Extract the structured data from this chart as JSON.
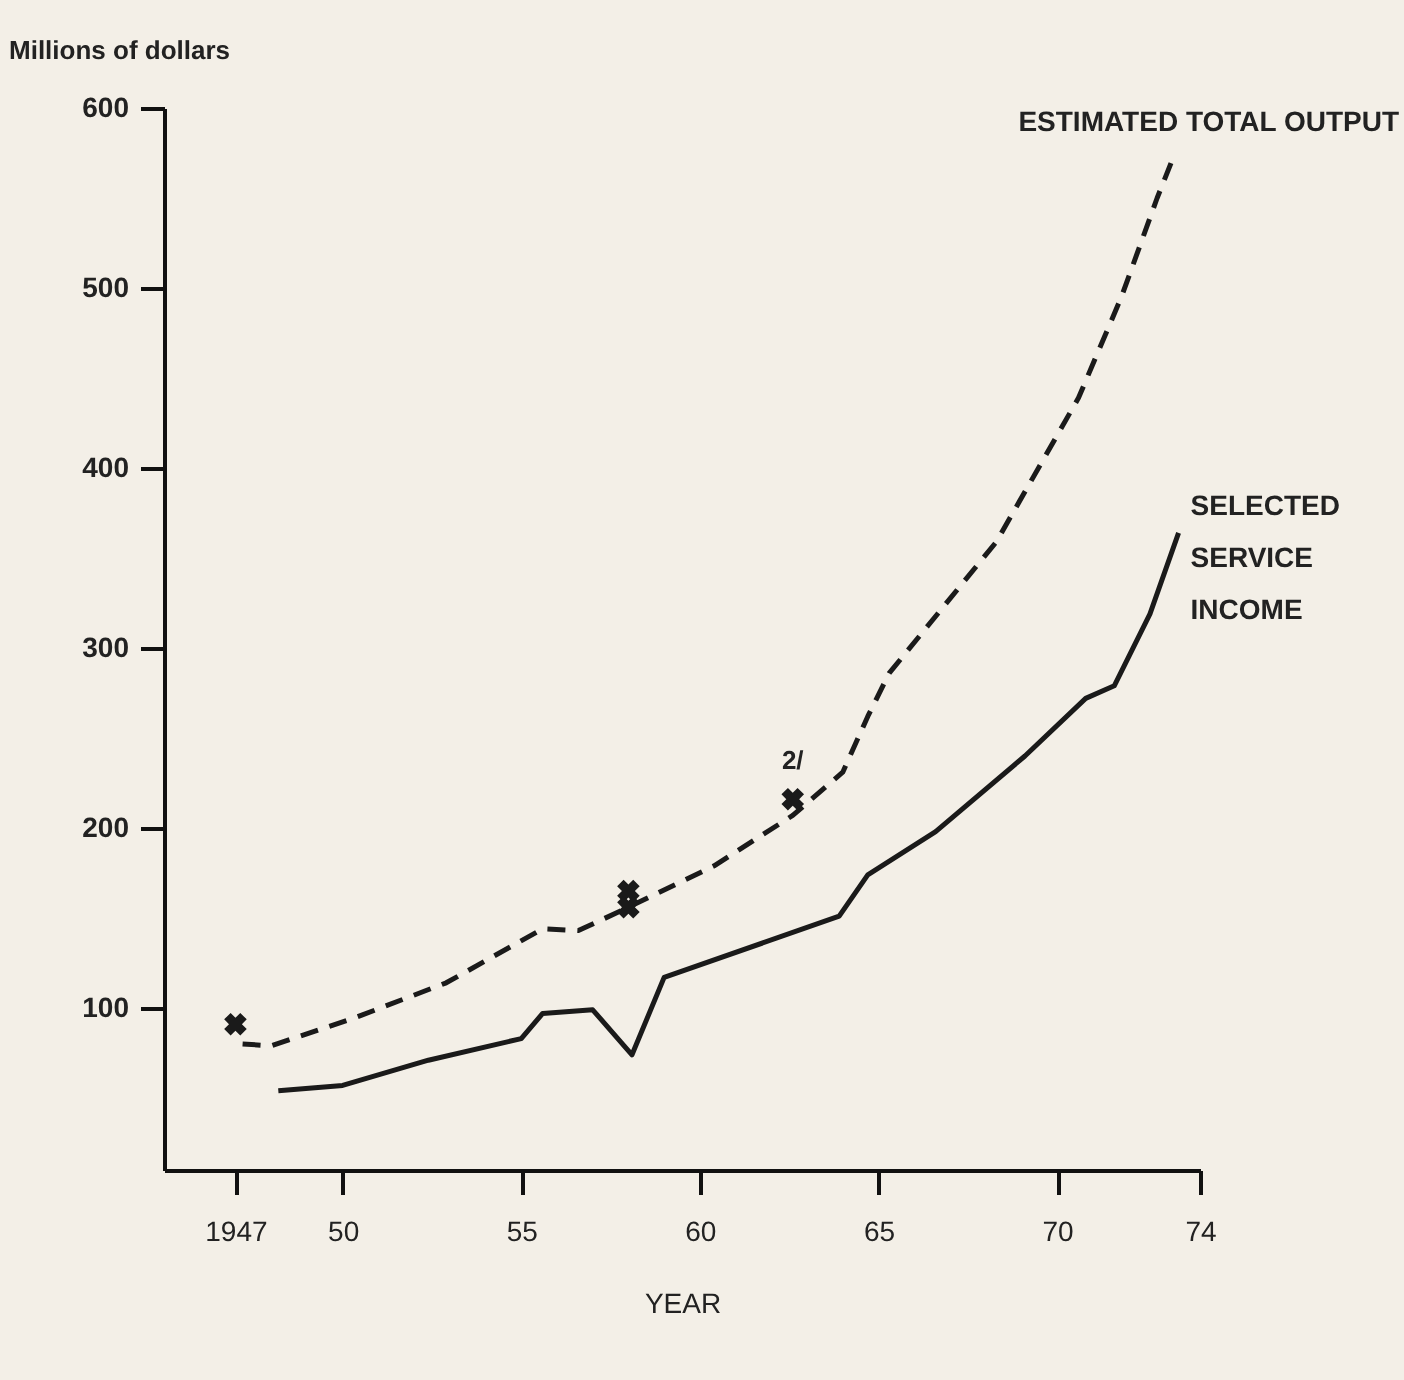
{
  "chart_data": {
    "type": "line",
    "ylabel": "Millions of dollars",
    "xlabel": "YEAR",
    "xlim": [
      1945,
      1974
    ],
    "ylim": [
      10,
      600
    ],
    "xticks": [
      1947,
      {
        "value": 1950,
        "label": "50"
      },
      {
        "value": 1955,
        "label": "55"
      },
      {
        "value": 1960,
        "label": "60"
      },
      {
        "value": 1965,
        "label": "65"
      },
      {
        "value": 1970,
        "label": "70"
      },
      {
        "value": 1974,
        "label": "74"
      }
    ],
    "yticks": [
      100,
      200,
      300,
      400,
      500,
      600
    ],
    "grid": false,
    "series": [
      {
        "name": "ESTIMATED TOTAL OUTPUT",
        "line_style": "dashed",
        "color": "#1a1a1a",
        "x": [
          1947.2,
          1948.0,
          1950.4,
          1952.9,
          1955.6,
          1956.6,
          1957.9,
          1960.4,
          1962.6,
          1964.0,
          1964.7,
          1965.3,
          1968.3,
          1970.6,
          1971.8,
          1972.8,
          1973.3
        ],
        "values": [
          80,
          79,
          95,
          114,
          144,
          143,
          155,
          179,
          207,
          231,
          262,
          286,
          359,
          439,
          495,
          550,
          575
        ]
      },
      {
        "name": "SELECTED\nSERVICE\nINCOME",
        "line_style": "solid",
        "color": "#1a1a1a",
        "x": [
          1948.2,
          1950.0,
          1952.4,
          1955.0,
          1955.6,
          1957.0,
          1958.1,
          1959.0,
          1963.9,
          1964.7,
          1966.6,
          1969.1,
          1970.8,
          1971.6,
          1972.6,
          1973.4
        ],
        "values": [
          54,
          57,
          71,
          83,
          97,
          99,
          74,
          117,
          151,
          174,
          198,
          240,
          272,
          279,
          319,
          364
        ]
      },
      {
        "type": "scatter",
        "marker": "cross",
        "color": "#1a1a1a",
        "x": [
          1947.0,
          1958.0,
          1958.0,
          1962.6
        ],
        "values": [
          91,
          165,
          156,
          216
        ]
      }
    ],
    "annotations": [
      {
        "text": "2/",
        "x": 1962.6,
        "y": 216
      }
    ]
  }
}
